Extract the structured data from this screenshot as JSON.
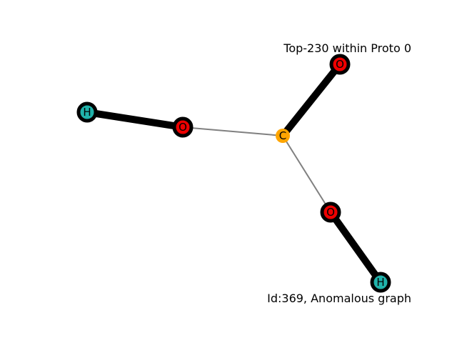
{
  "title": "Top-230 within Proto 0",
  "footer": "Id:369, Anomalous graph",
  "colors": {
    "O": "#ee0000",
    "H": "#20b2aa",
    "C": "#ffa500",
    "strong_edge": "#000000",
    "weak_edge": "#808080"
  },
  "graph": {
    "nodes": [
      {
        "id": "h1",
        "label": "H",
        "element": "H",
        "highlighted": true
      },
      {
        "id": "o1",
        "label": "O",
        "element": "O",
        "highlighted": true
      },
      {
        "id": "c",
        "label": "C",
        "element": "C",
        "highlighted": false
      },
      {
        "id": "o2",
        "label": "O",
        "element": "O",
        "highlighted": true
      },
      {
        "id": "o3",
        "label": "O",
        "element": "O",
        "highlighted": true
      },
      {
        "id": "h2",
        "label": "H",
        "element": "H",
        "highlighted": true
      }
    ],
    "edges": [
      {
        "source": "h1",
        "target": "o1",
        "strength": "strong"
      },
      {
        "source": "o1",
        "target": "c",
        "strength": "weak"
      },
      {
        "source": "c",
        "target": "o2",
        "strength": "strong"
      },
      {
        "source": "c",
        "target": "o3",
        "strength": "weak"
      },
      {
        "source": "o3",
        "target": "h2",
        "strength": "strong"
      }
    ]
  }
}
